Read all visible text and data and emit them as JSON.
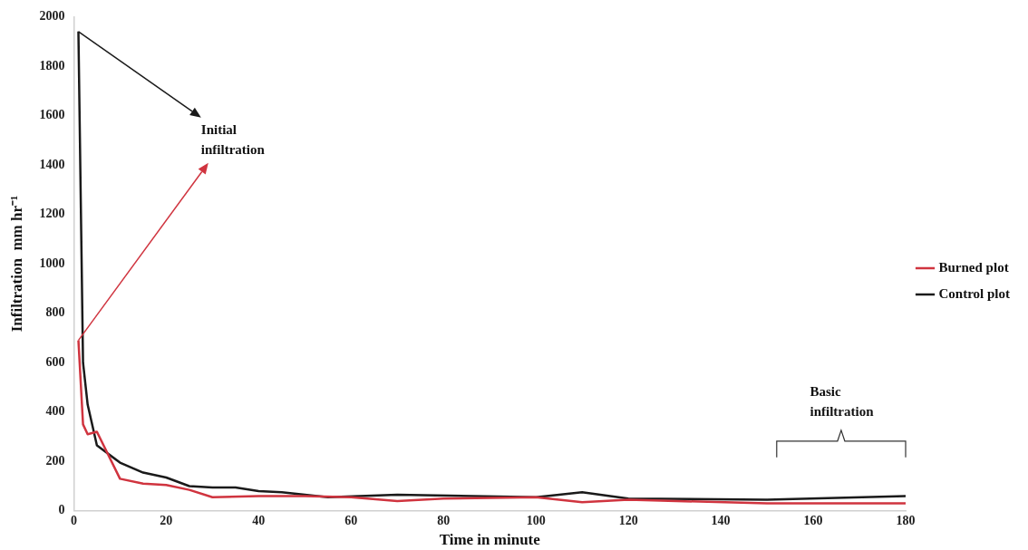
{
  "chart_data": {
    "type": "line",
    "xlabel": "Time in minute",
    "ylabel": "Infiltration  mm hr⁻¹",
    "xlim": [
      0,
      180
    ],
    "xticks": [
      0,
      20,
      40,
      60,
      80,
      100,
      120,
      140,
      160,
      180
    ],
    "ylim": [
      0,
      2000
    ],
    "yticks": [
      0,
      200,
      400,
      600,
      800,
      1000,
      1200,
      1400,
      1600,
      1800,
      2000
    ],
    "grid": false,
    "legend": "right",
    "marker": "none",
    "line_style": "solid",
    "series": [
      {
        "name": "Burned plot",
        "color": "#d0343f",
        "x": [
          1,
          2,
          3,
          5,
          10,
          15,
          20,
          25,
          30,
          40,
          50,
          60,
          70,
          80,
          100,
          110,
          120,
          150,
          180
        ],
        "values": [
          690,
          350,
          310,
          320,
          130,
          110,
          105,
          85,
          55,
          60,
          60,
          55,
          40,
          50,
          55,
          35,
          45,
          30,
          30
        ]
      },
      {
        "name": "Control plot",
        "color": "#1a1a1a",
        "x": [
          1,
          2,
          3,
          5,
          10,
          15,
          20,
          25,
          30,
          35,
          40,
          45,
          50,
          55,
          70,
          100,
          110,
          120,
          150,
          180
        ],
        "values": [
          1940,
          600,
          430,
          265,
          195,
          155,
          135,
          100,
          95,
          95,
          80,
          75,
          65,
          55,
          65,
          55,
          75,
          50,
          45,
          60
        ]
      }
    ],
    "annotations": [
      {
        "text": "Initial infiltration",
        "x": 1,
        "y": 1940
      },
      "Basic infiltration"
    ]
  }
}
